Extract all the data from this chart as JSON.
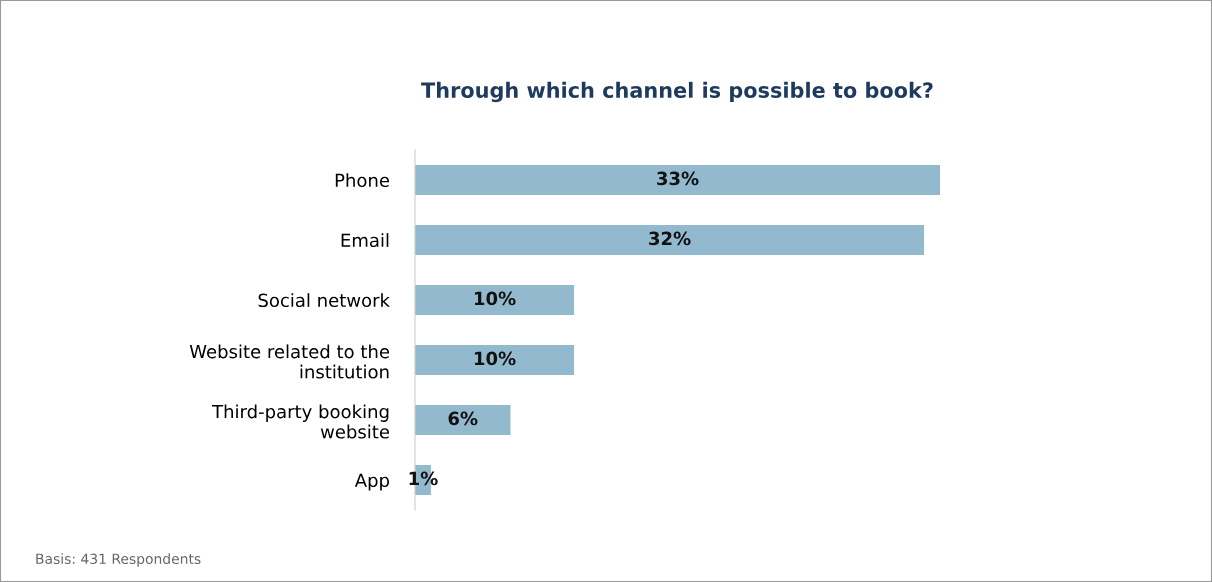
{
  "chart_data": {
    "type": "bar",
    "orientation": "horizontal",
    "title": "Through which channel is possible to book?",
    "categories": [
      "Phone",
      "Email",
      "Social network",
      "Website related to the\ninstitution",
      "Third-party booking\nwebsite",
      "App"
    ],
    "values": [
      33,
      32,
      10,
      10,
      6,
      1
    ],
    "color": "#93b9cf",
    "data_labels": true,
    "grid": false,
    "legend": false,
    "value_labels": [
      "33%",
      "32%",
      "10%",
      "10%",
      "6%",
      "1%"
    ],
    "annotations": [
      "Basis: 431 Respondents"
    ]
  }
}
